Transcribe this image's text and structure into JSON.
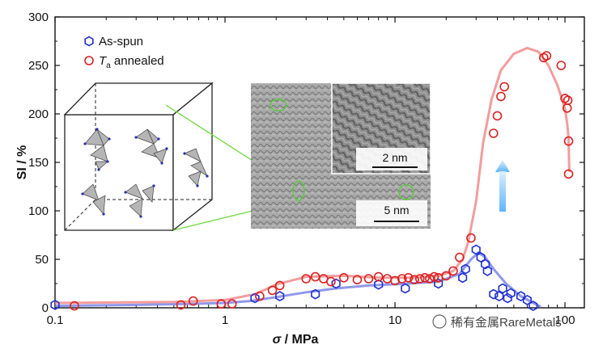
{
  "chart_data": {
    "type": "scatter",
    "xlabel_symbol": "σ",
    "xlabel_unit": " / MPa",
    "ylabel": "SI / %",
    "xscale": "log",
    "xlim": [
      0.1,
      130
    ],
    "ylim": [
      0,
      300
    ],
    "x_ticks": [
      {
        "value": 0.1,
        "label": "0.1"
      },
      {
        "value": 1,
        "label": "1"
      },
      {
        "value": 10,
        "label": "10"
      },
      {
        "value": 100,
        "label": "100"
      }
    ],
    "y_ticks": [
      {
        "value": 0,
        "label": "0"
      },
      {
        "value": 50,
        "label": "50"
      },
      {
        "value": 100,
        "label": "100"
      },
      {
        "value": 150,
        "label": "150"
      },
      {
        "value": 200,
        "label": "200"
      },
      {
        "value": 250,
        "label": "250"
      },
      {
        "value": 300,
        "label": "300"
      }
    ],
    "legend_position": "top-left",
    "series": [
      {
        "name": "As-spun",
        "marker": "hexagon",
        "color": "#1f2fd6",
        "fit_color": "#7d86e8",
        "x": [
          0.1,
          1.5,
          2.1,
          3.4,
          4.5,
          8.0,
          11.5,
          18.0,
          25.0,
          26.0,
          30.0,
          32.0,
          34.0,
          35.0,
          38.0,
          41.0,
          43.0,
          46.0,
          48.0,
          55.0,
          60.0,
          65.0
        ],
        "y": [
          3,
          10,
          12,
          14,
          25,
          24,
          20,
          25,
          31,
          40,
          60,
          52,
          45,
          38,
          14,
          12,
          20,
          10,
          15,
          12,
          8,
          2
        ],
        "fit_x": [
          0.1,
          0.3,
          0.6,
          1.0,
          1.4,
          2.0,
          3.0,
          4.5,
          7.0,
          12.0,
          18.0,
          24.0,
          28.0,
          31.0,
          34.0,
          38.0,
          45.0,
          55.0,
          65.0,
          72.0
        ],
        "fit_y": [
          2,
          3,
          4,
          5,
          7,
          11,
          16,
          20,
          23,
          25,
          27,
          35,
          50,
          57,
          52,
          40,
          25,
          12,
          5,
          1
        ]
      },
      {
        "name_prefix": "T",
        "name_subscript": "a",
        "name_suffix": " annealed",
        "marker": "circle",
        "color": "#e02020",
        "fit_color": "#f28b8b",
        "x": [
          0.13,
          0.55,
          0.65,
          0.95,
          1.1,
          1.6,
          1.9,
          2.1,
          3.0,
          3.4,
          3.8,
          4.2,
          5.0,
          6.0,
          7.0,
          8.0,
          9.0,
          10.0,
          11.0,
          12.0,
          13.0,
          14.0,
          15.0,
          16.0,
          17.0,
          18.0,
          20.0,
          22.0,
          24.0,
          28.0,
          38.0,
          40.0,
          42.0,
          44.0,
          75.0,
          78.0,
          95.0,
          100.0,
          103.0,
          104.0,
          105.0,
          105.0
        ],
        "y": [
          2,
          3,
          7,
          4,
          4,
          12,
          18,
          23,
          30,
          32,
          30,
          27,
          31,
          29,
          30,
          32,
          30,
          28,
          30,
          31,
          29,
          30,
          31,
          30,
          32,
          31,
          33,
          38,
          52,
          72,
          180,
          198,
          218,
          228,
          258,
          260,
          250,
          216,
          206,
          214,
          172,
          138
        ],
        "fit_x": [
          0.1,
          0.5,
          1.0,
          1.5,
          2.0,
          3.0,
          5.0,
          8.0,
          12.0,
          18.0,
          22.0,
          25.0,
          27.0,
          30.0,
          33.0,
          37.0,
          42.0,
          50.0,
          60.0,
          70.0,
          80.0,
          90.0,
          95.0,
          100.0,
          103.0,
          105.0,
          106.0
        ],
        "fit_y": [
          5,
          6,
          8,
          14,
          24,
          32,
          33,
          31,
          31,
          33,
          38,
          50,
          68,
          110,
          170,
          215,
          245,
          262,
          268,
          264,
          250,
          230,
          218,
          205,
          190,
          175,
          140
        ]
      }
    ],
    "inset": {
      "scale_bar_main": "5 nm",
      "scale_bar_zoom": "2 nm"
    }
  },
  "watermark": {
    "text": "稀有金属RareMetals"
  }
}
